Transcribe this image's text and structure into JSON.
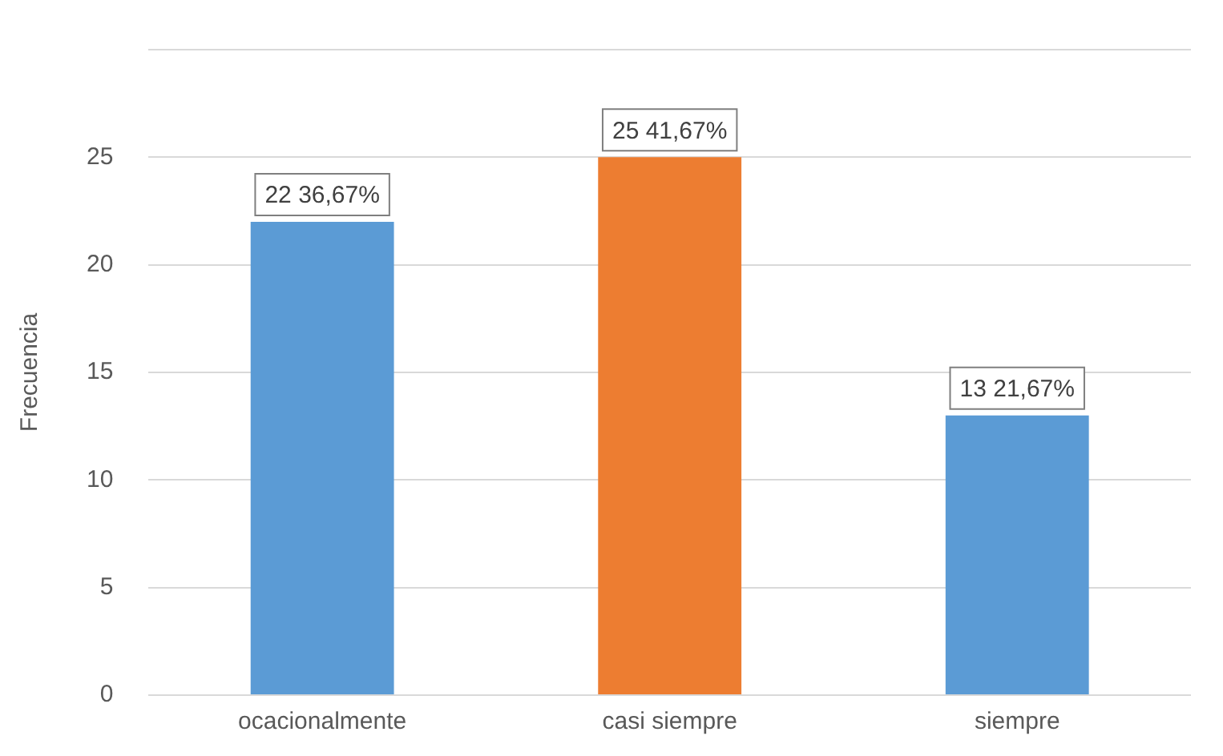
{
  "chart_data": {
    "type": "bar",
    "ylabel": "Frecuencia",
    "categories": [
      "ocacionalmente",
      "casi siempre",
      "siempre"
    ],
    "values": [
      22,
      25,
      13
    ],
    "colors": [
      "#5b9bd5",
      "#ed7d31",
      "#5b9bd5"
    ],
    "value_labels": [
      "22 36,67%",
      "25 41,67%",
      "13 21,67%"
    ],
    "ylim": [
      0,
      30
    ],
    "yticks": [
      0,
      5,
      10,
      15,
      20,
      25
    ],
    "grid": "y",
    "legend": false
  }
}
